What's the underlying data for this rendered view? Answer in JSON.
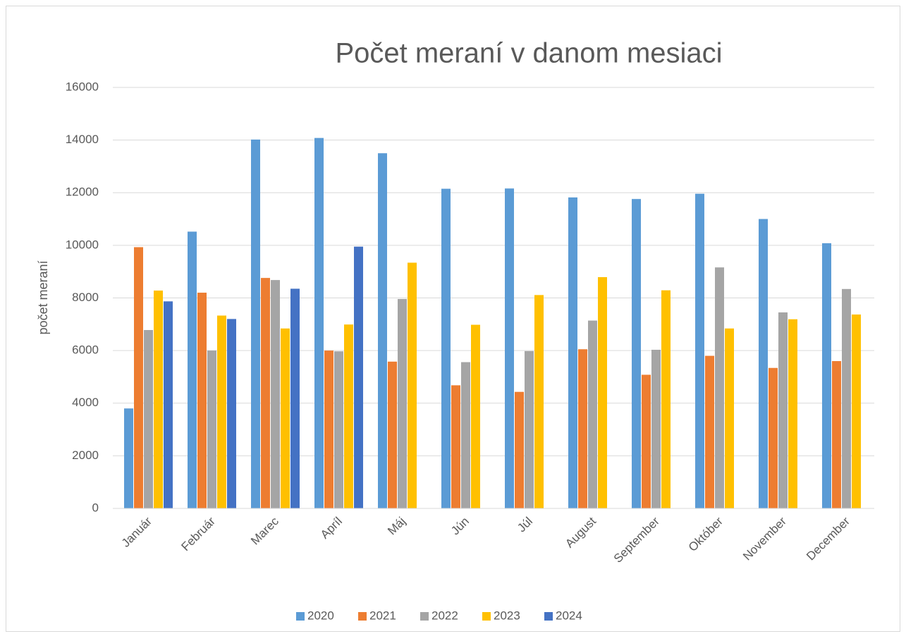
{
  "chart_data": {
    "type": "bar",
    "title": "Počet meraní v danom mesiaci",
    "y_label": "počet meraní",
    "categories": [
      "Január",
      "Február",
      "Marec",
      "Apríl",
      "Máj",
      "Jún",
      "Júl",
      "August",
      "September",
      "Október",
      "November",
      "December"
    ],
    "series": [
      {
        "name": "2020",
        "color": "#5b9bd5",
        "values": [
          3800,
          10520,
          14020,
          14080,
          13500,
          12150,
          12160,
          11820,
          11760,
          11960,
          11000,
          10080
        ]
      },
      {
        "name": "2021",
        "color": "#ed7d31",
        "values": [
          9930,
          8200,
          8760,
          6000,
          5580,
          4680,
          4430,
          6050,
          5080,
          5800,
          5340,
          5600
        ]
      },
      {
        "name": "2022",
        "color": "#a5a5a5",
        "values": [
          6780,
          6000,
          8680,
          5970,
          7960,
          5560,
          5980,
          7140,
          6030,
          9160,
          7450,
          8340
        ]
      },
      {
        "name": "2023",
        "color": "#ffc000",
        "values": [
          8280,
          7330,
          6840,
          6990,
          9340,
          6980,
          8110,
          8790,
          8290,
          6840,
          7190,
          7370
        ]
      },
      {
        "name": "2024",
        "color": "#4472c4",
        "values": [
          7870,
          7200,
          8350,
          9950,
          null,
          null,
          null,
          null,
          null,
          null,
          null,
          null
        ]
      }
    ],
    "ylim": [
      0,
      16000
    ],
    "yticks": [
      0,
      2000,
      4000,
      6000,
      8000,
      10000,
      12000,
      14000,
      16000
    ],
    "grid": true,
    "legend": "bottom"
  }
}
